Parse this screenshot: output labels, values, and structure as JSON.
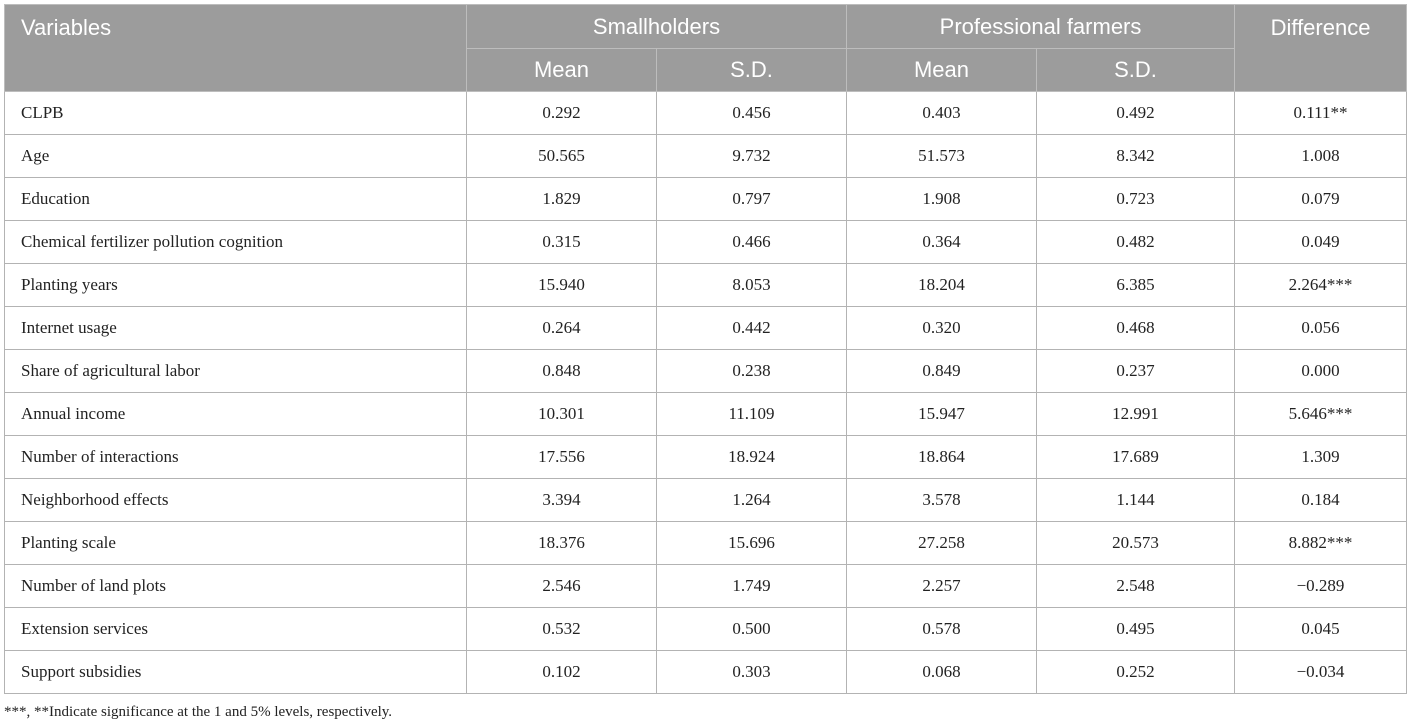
{
  "table": {
    "header": {
      "variables": "Variables",
      "group1": "Smallholders",
      "group2": "Professional farmers",
      "difference": "Difference",
      "sub": [
        "Mean",
        "S.D.",
        "Mean",
        "S.D."
      ]
    },
    "rows": [
      [
        "CLPB",
        "0.292",
        "0.456",
        "0.403",
        "0.492",
        "0.111**"
      ],
      [
        "Age",
        "50.565",
        "9.732",
        "51.573",
        "8.342",
        "1.008"
      ],
      [
        "Education",
        "1.829",
        "0.797",
        "1.908",
        "0.723",
        "0.079"
      ],
      [
        "Chemical fertilizer pollution cognition",
        "0.315",
        "0.466",
        "0.364",
        "0.482",
        "0.049"
      ],
      [
        "Planting years",
        "15.940",
        "8.053",
        "18.204",
        "6.385",
        "2.264***"
      ],
      [
        "Internet usage",
        "0.264",
        "0.442",
        "0.320",
        "0.468",
        "0.056"
      ],
      [
        "Share of agricultural labor",
        "0.848",
        "0.238",
        "0.849",
        "0.237",
        "0.000"
      ],
      [
        "Annual income",
        "10.301",
        "11.109",
        "15.947",
        "12.991",
        "5.646***"
      ],
      [
        "Number of interactions",
        "17.556",
        "18.924",
        "18.864",
        "17.689",
        "1.309"
      ],
      [
        "Neighborhood effects",
        "3.394",
        "1.264",
        "3.578",
        "1.144",
        "0.184"
      ],
      [
        "Planting scale",
        "18.376",
        "15.696",
        "27.258",
        "20.573",
        "8.882***"
      ],
      [
        "Number of land plots",
        "2.546",
        "1.749",
        "2.257",
        "2.548",
        "−0.289"
      ],
      [
        "Extension services",
        "0.532",
        "0.500",
        "0.578",
        "0.495",
        "0.045"
      ],
      [
        "Support subsidies",
        "0.102",
        "0.303",
        "0.068",
        "0.252",
        "−0.034"
      ]
    ]
  },
  "footnote": "***, **Indicate significance at the 1 and 5% levels, respectively."
}
